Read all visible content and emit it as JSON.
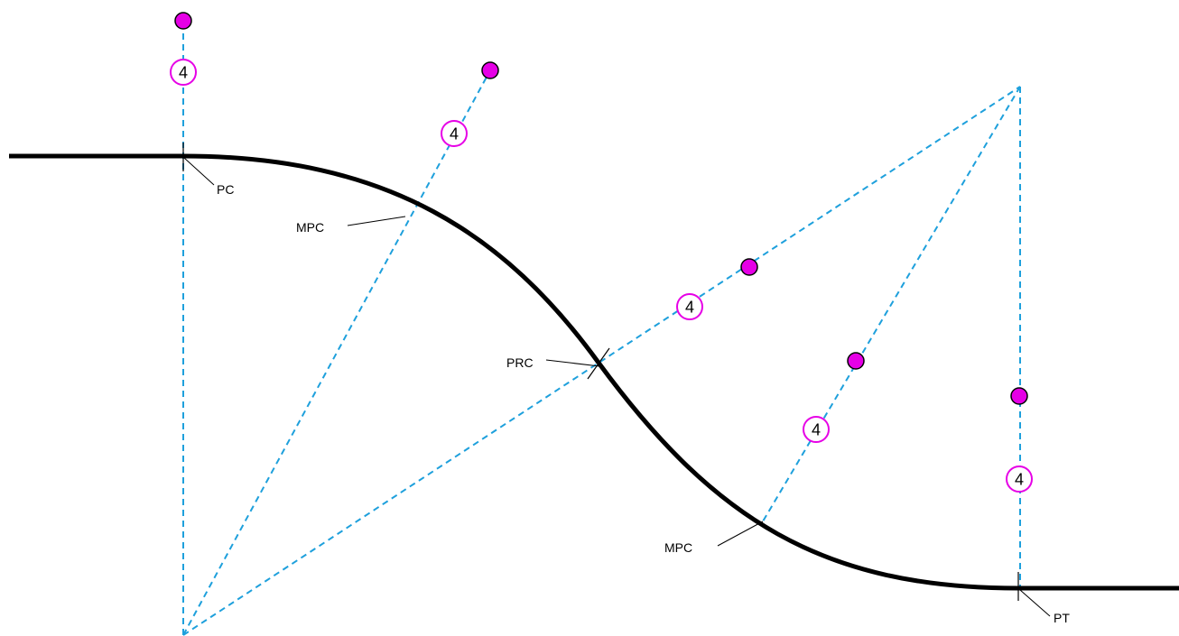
{
  "colors": {
    "road": "#000000",
    "radial": "#1ea0dc",
    "dot": "#e600e6",
    "ring": "#e600e6"
  },
  "labels": {
    "pc": "PC",
    "mpc_upper": "MPC",
    "prc": "PRC",
    "mpc_lower": "MPC",
    "pt": "PT"
  },
  "markers": {
    "ring_value": "4"
  },
  "icons": {
    "dot": "filled-magenta-circle",
    "ring": "circled-number"
  }
}
